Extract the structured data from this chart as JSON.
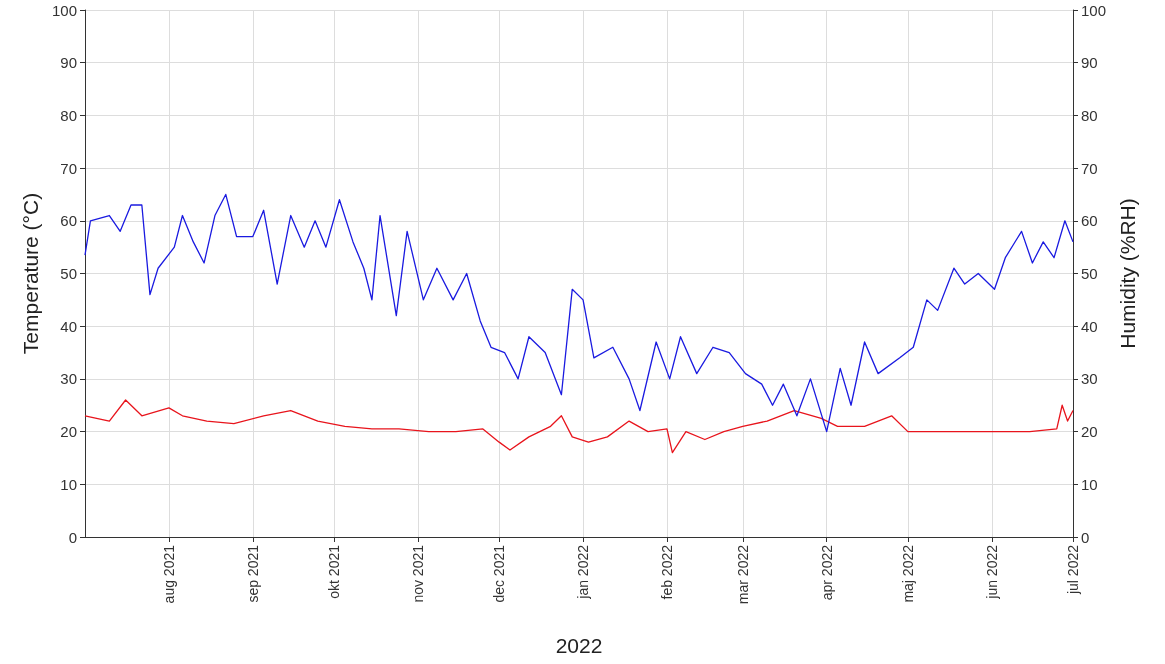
{
  "chart_data": {
    "type": "line",
    "xlabel": "2022",
    "ylabel": "Temperature (°C)",
    "y2label": "Humidity (%RH)",
    "xlim": [
      "2021-07-01",
      "2022-07-01"
    ],
    "xticks": [
      {
        "value": "2021-08-01",
        "label": "aug 2021"
      },
      {
        "value": "2021-09-01",
        "label": "sep 2021"
      },
      {
        "value": "2021-10-01",
        "label": "okt 2021"
      },
      {
        "value": "2021-11-01",
        "label": "nov 2021"
      },
      {
        "value": "2021-12-01",
        "label": "dec 2021"
      },
      {
        "value": "2022-01-01",
        "label": "jan 2022"
      },
      {
        "value": "2022-02-01",
        "label": "feb 2022"
      },
      {
        "value": "2022-03-01",
        "label": "mar 2022"
      },
      {
        "value": "2022-04-01",
        "label": "apr 2022"
      },
      {
        "value": "2022-05-01",
        "label": "maj 2022"
      },
      {
        "value": "2022-06-01",
        "label": "jun 2022"
      },
      {
        "value": "2022-07-01",
        "label": "jul 2022"
      }
    ],
    "ylim": [
      0,
      100
    ],
    "yticks": [
      0,
      10,
      20,
      30,
      40,
      50,
      60,
      70,
      80,
      90,
      100
    ],
    "y2lim": [
      0,
      100
    ],
    "y2ticks": [
      0,
      10,
      20,
      30,
      40,
      50,
      60,
      70,
      80,
      90,
      100
    ],
    "grid": true,
    "marker": "none",
    "line_style": "solid",
    "series": [
      {
        "color": "#e8141c",
        "x": [
          "2021-07-01",
          "2021-07-10",
          "2021-07-16",
          "2021-07-22",
          "2021-08-01",
          "2021-08-06",
          "2021-08-15",
          "2021-08-25",
          "2021-09-05",
          "2021-09-15",
          "2021-09-25",
          "2021-10-05",
          "2021-10-15",
          "2021-10-25",
          "2021-11-05",
          "2021-11-15",
          "2021-11-25",
          "2021-12-01",
          "2021-12-05",
          "2021-12-12",
          "2021-12-20",
          "2021-12-24",
          "2021-12-28",
          "2022-01-03",
          "2022-01-10",
          "2022-01-18",
          "2022-01-25",
          "2022-02-01",
          "2022-02-03",
          "2022-02-08",
          "2022-02-15",
          "2022-02-22",
          "2022-03-01",
          "2022-03-10",
          "2022-03-20",
          "2022-03-30",
          "2022-04-05",
          "2022-04-15",
          "2022-04-25",
          "2022-05-01",
          "2022-05-15",
          "2022-05-25",
          "2022-06-05",
          "2022-06-15",
          "2022-06-25",
          "2022-06-27",
          "2022-06-29",
          "2022-07-01"
        ],
        "values": [
          23,
          22,
          26,
          23,
          24.5,
          23,
          22,
          21.5,
          23,
          24,
          22,
          21,
          20.5,
          20.5,
          20,
          20,
          20.5,
          18,
          16.5,
          19,
          21,
          23,
          19,
          18,
          19,
          22,
          20,
          20.5,
          16,
          20,
          18.5,
          20,
          21,
          22,
          24,
          22.5,
          21,
          21,
          23,
          20,
          20,
          20,
          20,
          20,
          20.5,
          25,
          22,
          24
        ]
      },
      {
        "color": "#1a1ae0",
        "axis": "y2",
        "x": [
          "2021-07-01",
          "2021-07-03",
          "2021-07-10",
          "2021-07-14",
          "2021-07-18",
          "2021-07-22",
          "2021-07-25",
          "2021-07-28",
          "2021-08-03",
          "2021-08-06",
          "2021-08-10",
          "2021-08-14",
          "2021-08-18",
          "2021-08-22",
          "2021-08-26",
          "2021-09-01",
          "2021-09-05",
          "2021-09-10",
          "2021-09-15",
          "2021-09-20",
          "2021-09-24",
          "2021-09-28",
          "2021-10-03",
          "2021-10-08",
          "2021-10-12",
          "2021-10-15",
          "2021-10-18",
          "2021-10-24",
          "2021-10-28",
          "2021-11-03",
          "2021-11-08",
          "2021-11-14",
          "2021-11-19",
          "2021-11-24",
          "2021-11-28",
          "2021-12-03",
          "2021-12-08",
          "2021-12-12",
          "2021-12-18",
          "2021-12-24",
          "2021-12-28",
          "2022-01-01",
          "2022-01-05",
          "2022-01-12",
          "2022-01-18",
          "2022-01-22",
          "2022-01-28",
          "2022-02-02",
          "2022-02-06",
          "2022-02-12",
          "2022-02-18",
          "2022-02-24",
          "2022-03-02",
          "2022-03-08",
          "2022-03-12",
          "2022-03-16",
          "2022-03-21",
          "2022-03-26",
          "2022-04-01",
          "2022-04-06",
          "2022-04-10",
          "2022-04-15",
          "2022-04-20",
          "2022-04-28",
          "2022-05-03",
          "2022-05-08",
          "2022-05-12",
          "2022-05-18",
          "2022-05-22",
          "2022-05-27",
          "2022-06-02",
          "2022-06-06",
          "2022-06-12",
          "2022-06-16",
          "2022-06-20",
          "2022-06-24",
          "2022-06-28",
          "2022-07-01"
        ],
        "values": [
          53.5,
          60,
          61,
          58,
          63,
          63,
          46,
          51,
          55,
          61,
          56,
          52,
          61,
          65,
          57,
          57,
          62,
          48,
          61,
          55,
          60,
          55,
          64,
          56,
          51,
          45,
          61,
          42,
          58,
          45,
          51,
          45,
          50,
          41,
          36,
          35,
          30,
          38,
          35,
          27,
          47,
          45,
          34,
          36,
          30,
          24,
          37,
          30,
          38,
          31,
          36,
          35,
          31,
          29,
          25,
          29,
          23,
          30,
          20,
          32,
          25,
          37,
          31,
          34,
          36,
          45,
          43,
          51,
          48,
          50,
          47,
          53,
          58,
          52,
          56,
          53,
          60,
          56
        ]
      }
    ]
  }
}
